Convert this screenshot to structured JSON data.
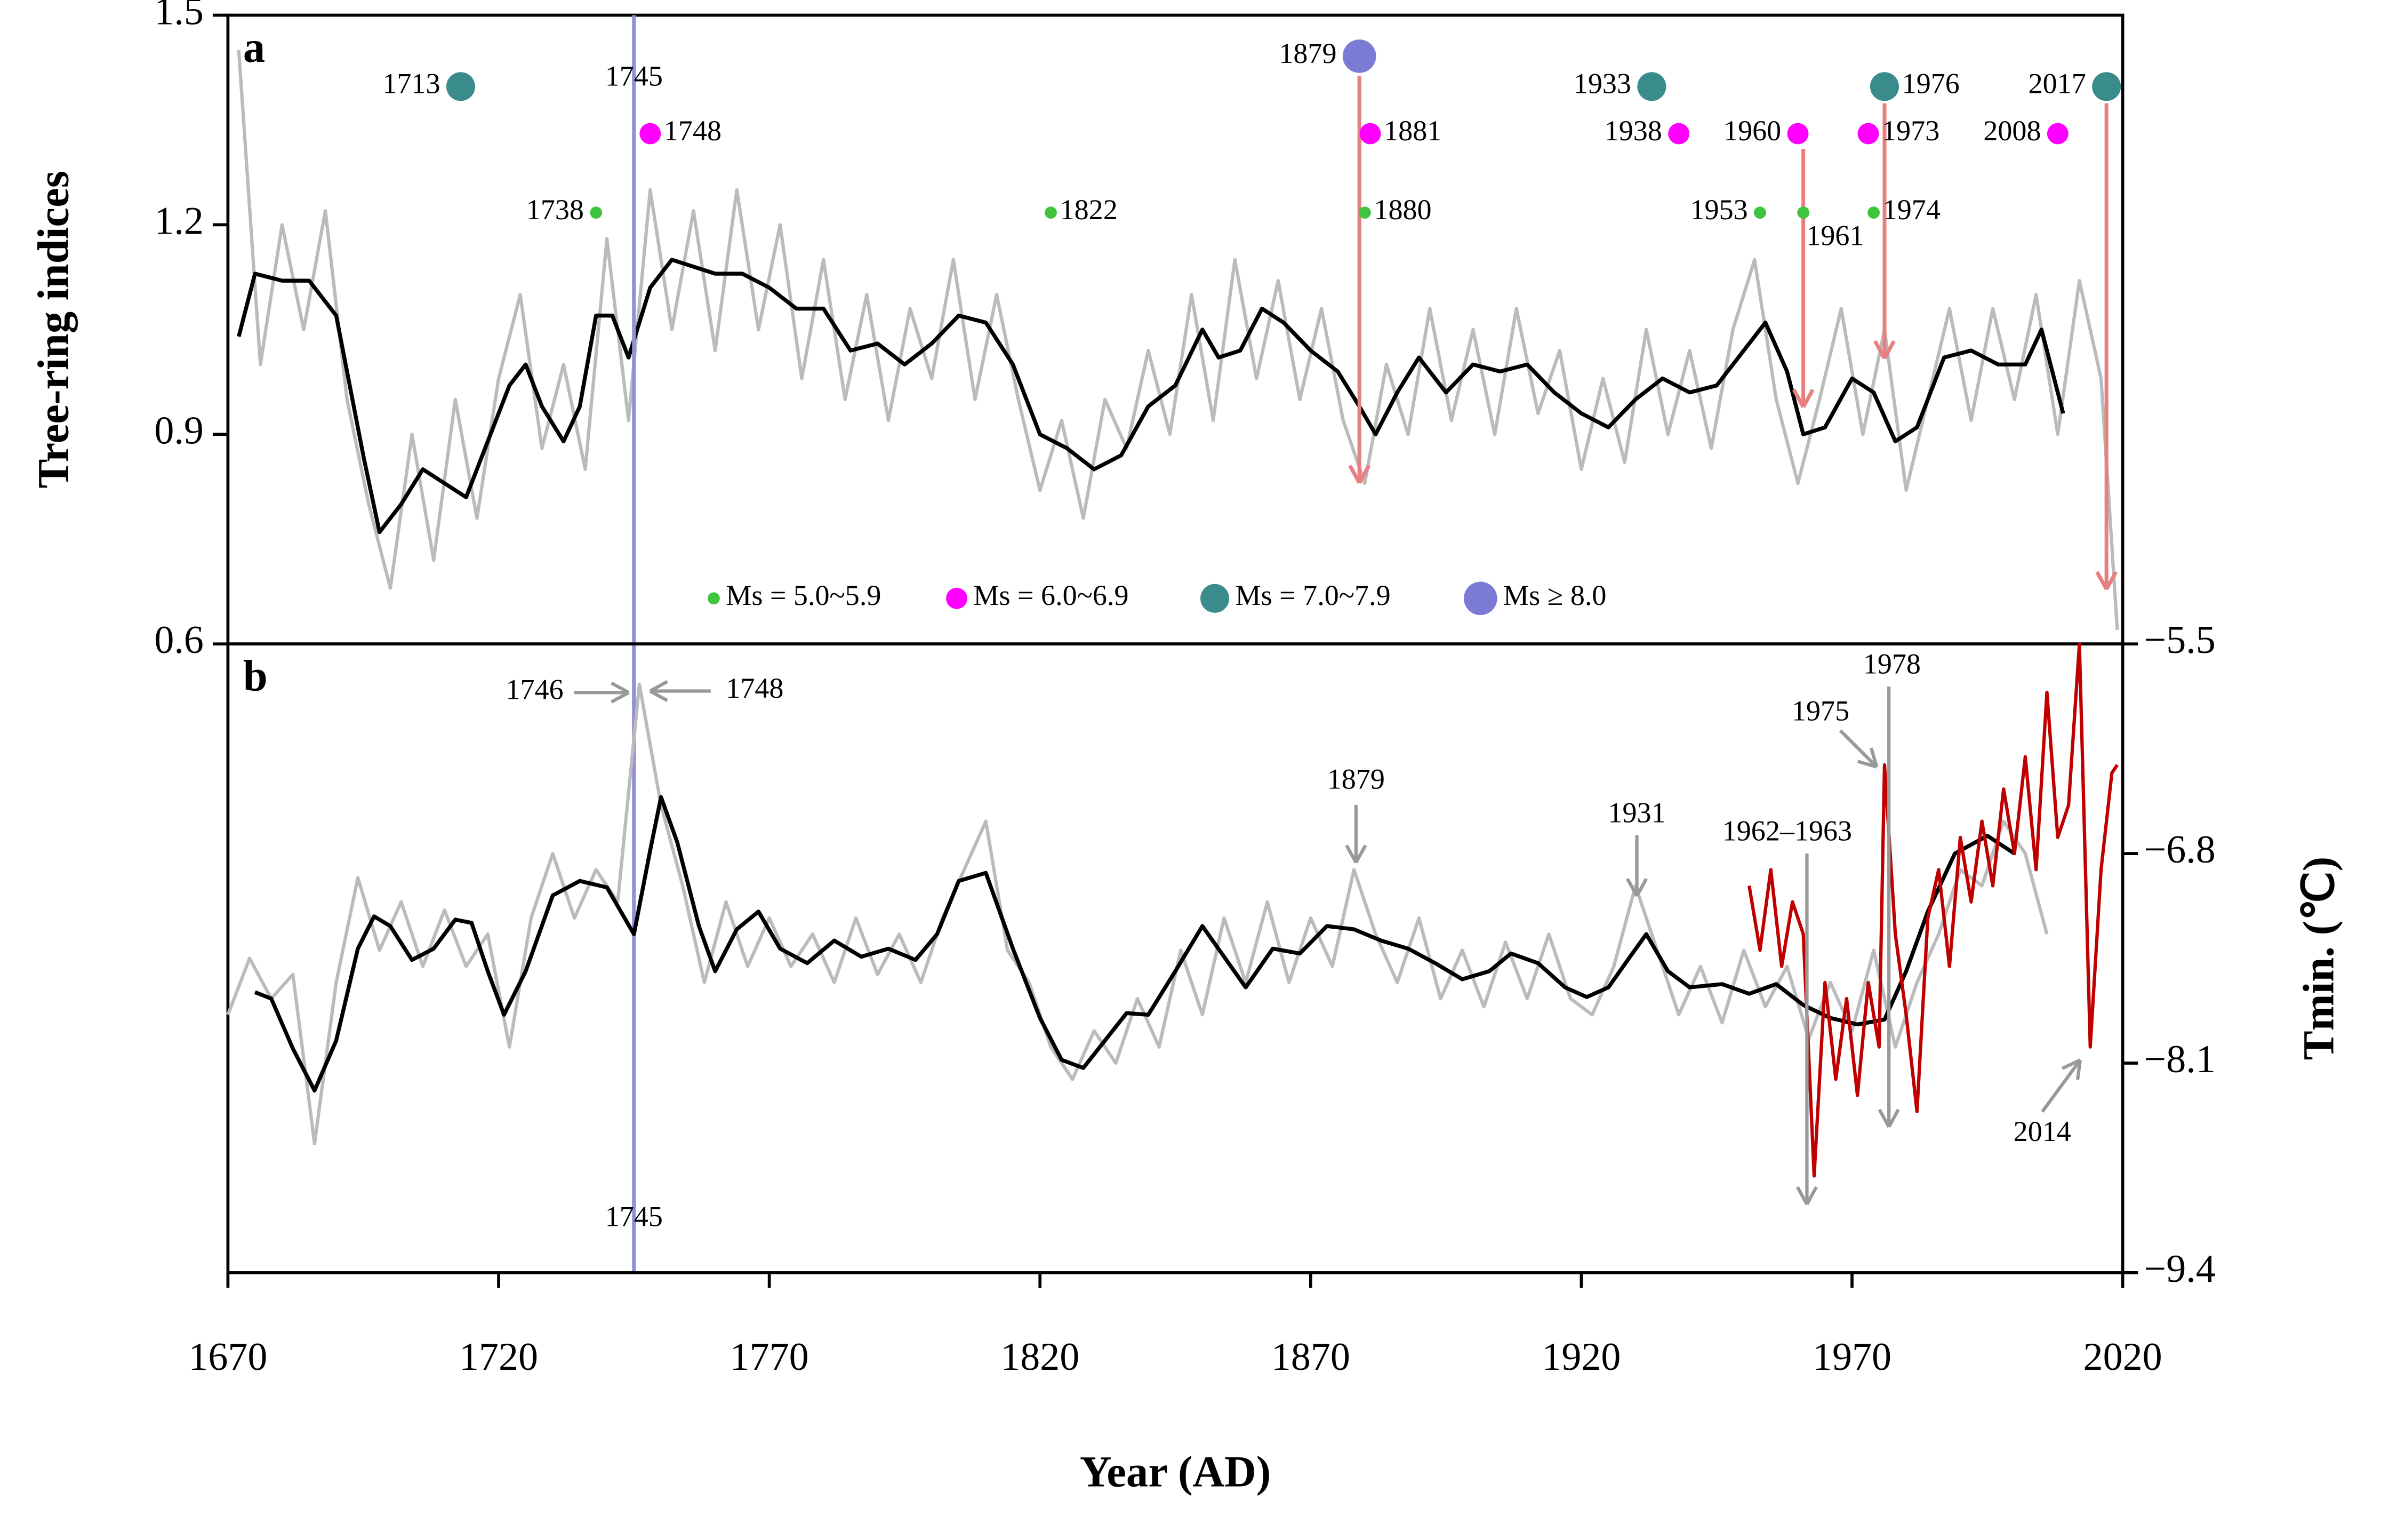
{
  "chart_data": [
    {
      "type": "line",
      "panel_label": "a",
      "ylabel": "Tree-ring indices",
      "xlim": [
        1670,
        2020
      ],
      "ylim": [
        0.6,
        1.5
      ],
      "yticks": [
        0.6,
        0.9,
        1.2,
        1.5
      ],
      "vline": 1745,
      "vline_color": "#8f8fdc",
      "series": [
        {
          "color": "#bbbbbb",
          "x": [
            1672,
            1676,
            1680,
            1684,
            1688,
            1692,
            1696,
            1700,
            1704,
            1708,
            1712,
            1716,
            1720,
            1724,
            1728,
            1732,
            1736,
            1740,
            1744,
            1748,
            1752,
            1756,
            1760,
            1764,
            1768,
            1772,
            1776,
            1780,
            1784,
            1788,
            1792,
            1796,
            1800,
            1804,
            1808,
            1812,
            1816,
            1820,
            1824,
            1828,
            1832,
            1836,
            1840,
            1844,
            1848,
            1852,
            1856,
            1860,
            1864,
            1868,
            1872,
            1876,
            1880,
            1884,
            1888,
            1892,
            1896,
            1900,
            1904,
            1908,
            1912,
            1916,
            1920,
            1924,
            1928,
            1932,
            1936,
            1940,
            1944,
            1948,
            1952,
            1956,
            1960,
            1964,
            1968,
            1972,
            1976,
            1980,
            1984,
            1988,
            1992,
            1996,
            2000,
            2004,
            2008,
            2012,
            2016,
            2019
          ],
          "values": [
            1.45,
            1.0,
            1.2,
            1.05,
            1.22,
            0.95,
            0.8,
            0.68,
            0.9,
            0.72,
            0.95,
            0.78,
            0.98,
            1.1,
            0.88,
            1.0,
            0.85,
            1.18,
            0.92,
            1.25,
            1.05,
            1.22,
            1.02,
            1.25,
            1.05,
            1.2,
            0.98,
            1.15,
            0.95,
            1.1,
            0.92,
            1.08,
            0.98,
            1.15,
            0.95,
            1.1,
            0.95,
            0.82,
            0.92,
            0.78,
            0.95,
            0.88,
            1.02,
            0.9,
            1.1,
            0.92,
            1.15,
            0.98,
            1.12,
            0.95,
            1.08,
            0.92,
            0.83,
            1.0,
            0.9,
            1.08,
            0.92,
            1.05,
            0.9,
            1.08,
            0.93,
            1.02,
            0.85,
            0.98,
            0.86,
            1.05,
            0.9,
            1.02,
            0.88,
            1.05,
            1.15,
            0.95,
            0.83,
            0.95,
            1.08,
            0.9,
            1.05,
            0.82,
            0.95,
            1.08,
            0.92,
            1.08,
            0.95,
            1.1,
            0.9,
            1.12,
            0.98,
            0.62
          ]
        },
        {
          "color": "#000000",
          "x": [
            1672,
            1675,
            1680,
            1685,
            1690,
            1695,
            1698,
            1702,
            1706,
            1710,
            1714,
            1718,
            1722,
            1725,
            1728,
            1732,
            1735,
            1738,
            1741,
            1744,
            1748,
            1752,
            1756,
            1760,
            1765,
            1770,
            1775,
            1780,
            1785,
            1790,
            1795,
            1800,
            1805,
            1810,
            1815,
            1820,
            1825,
            1830,
            1835,
            1840,
            1845,
            1850,
            1853,
            1857,
            1861,
            1865,
            1870,
            1875,
            1879,
            1882,
            1886,
            1890,
            1895,
            1900,
            1905,
            1910,
            1915,
            1920,
            1925,
            1930,
            1935,
            1940,
            1945,
            1950,
            1954,
            1958,
            1961,
            1965,
            1970,
            1974,
            1978,
            1982,
            1987,
            1992,
            1997,
            2002,
            2005,
            2009
          ],
          "values": [
            1.04,
            1.13,
            1.12,
            1.12,
            1.07,
            0.87,
            0.76,
            0.8,
            0.85,
            0.83,
            0.81,
            0.89,
            0.97,
            1.0,
            0.94,
            0.89,
            0.94,
            1.07,
            1.07,
            1.01,
            1.11,
            1.15,
            1.14,
            1.13,
            1.13,
            1.11,
            1.08,
            1.08,
            1.02,
            1.03,
            1.0,
            1.03,
            1.07,
            1.06,
            1.0,
            0.9,
            0.88,
            0.85,
            0.87,
            0.94,
            0.97,
            1.05,
            1.01,
            1.02,
            1.08,
            1.06,
            1.02,
            0.99,
            0.94,
            0.9,
            0.96,
            1.01,
            0.96,
            1.0,
            0.99,
            1.0,
            0.96,
            0.93,
            0.91,
            0.95,
            0.98,
            0.96,
            0.97,
            1.02,
            1.06,
            0.99,
            0.9,
            0.91,
            0.98,
            0.96,
            0.89,
            0.91,
            1.01,
            1.02,
            1.0,
            1.0,
            1.05,
            0.93
          ]
        }
      ],
      "event_classes": [
        {
          "name": "Ms = 5.0~5.9",
          "color": "#3ec43e"
        },
        {
          "name": "Ms = 6.0~6.9",
          "color": "#ff00ff"
        },
        {
          "name": "Ms = 7.0~7.9",
          "color": "#3a8c8c"
        },
        {
          "name": "Ms ≥ 8.0",
          "color": "#7b7bd6"
        }
      ],
      "events": [
        {
          "year": 1713,
          "class": 2
        },
        {
          "year": 1738,
          "class": 0
        },
        {
          "year": 1748,
          "class": 1
        },
        {
          "year": 1822,
          "class": 0
        },
        {
          "year": 1879,
          "class": 3
        },
        {
          "year": 1880,
          "class": 0
        },
        {
          "year": 1881,
          "class": 1
        },
        {
          "year": 1933,
          "class": 2
        },
        {
          "year": 1938,
          "class": 1
        },
        {
          "year": 1953,
          "class": 0
        },
        {
          "year": 1960,
          "class": 1
        },
        {
          "year": 1961,
          "class": 0
        },
        {
          "year": 1973,
          "class": 1
        },
        {
          "year": 1974,
          "class": 0
        },
        {
          "year": 1976,
          "class": 2
        },
        {
          "year": 2008,
          "class": 1
        },
        {
          "year": 2017,
          "class": 2
        }
      ],
      "arrows": [
        1879,
        1961,
        1976,
        2017
      ],
      "arrow_color": "#e88080"
    },
    {
      "type": "line",
      "panel_label": "b",
      "xlabel": "Year (AD)",
      "y2label": "Tmin. (℃)",
      "xlim": [
        1670,
        2020
      ],
      "xticks": [
        1670,
        1720,
        1770,
        1820,
        1870,
        1920,
        1970,
        2020
      ],
      "y2lim": [
        -9.4,
        -5.5
      ],
      "y2ticks": [
        {
          "value": -5.5,
          "label": "−5.5"
        },
        {
          "value": -6.8,
          "label": "−6.8"
        },
        {
          "value": -8.1,
          "label": "−8.1"
        },
        {
          "value": -9.4,
          "label": "−9.4"
        }
      ],
      "series": [
        {
          "color": "#bbbbbb",
          "axis": "y2",
          "x": [
            1670,
            1674,
            1678,
            1682,
            1686,
            1690,
            1694,
            1698,
            1702,
            1706,
            1710,
            1714,
            1718,
            1722,
            1726,
            1730,
            1734,
            1738,
            1742,
            1746,
            1750,
            1754,
            1758,
            1762,
            1766,
            1770,
            1774,
            1778,
            1782,
            1786,
            1790,
            1794,
            1798,
            1802,
            1806,
            1810,
            1814,
            1818,
            1822,
            1826,
            1830,
            1834,
            1838,
            1842,
            1846,
            1850,
            1854,
            1858,
            1862,
            1866,
            1870,
            1874,
            1878,
            1882,
            1886,
            1890,
            1894,
            1898,
            1902,
            1906,
            1910,
            1914,
            1918,
            1922,
            1926,
            1930,
            1934,
            1938,
            1942,
            1946,
            1950,
            1954,
            1958,
            1962,
            1966,
            1970,
            1974,
            1978,
            1982,
            1986,
            1990,
            1994,
            1998,
            2002,
            2006
          ],
          "values": [
            -7.8,
            -7.45,
            -7.7,
            -7.55,
            -8.6,
            -7.6,
            -6.95,
            -7.4,
            -7.1,
            -7.5,
            -7.15,
            -7.5,
            -7.3,
            -8.0,
            -7.2,
            -6.8,
            -7.2,
            -6.9,
            -7.1,
            -5.75,
            -6.5,
            -7.0,
            -7.6,
            -7.1,
            -7.5,
            -7.2,
            -7.5,
            -7.3,
            -7.6,
            -7.2,
            -7.55,
            -7.3,
            -7.6,
            -7.2,
            -6.9,
            -6.6,
            -7.4,
            -7.6,
            -8.0,
            -8.2,
            -7.9,
            -8.1,
            -7.7,
            -8.0,
            -7.4,
            -7.8,
            -7.2,
            -7.6,
            -7.1,
            -7.6,
            -7.2,
            -7.5,
            -6.9,
            -7.3,
            -7.6,
            -7.2,
            -7.7,
            -7.4,
            -7.75,
            -7.35,
            -7.7,
            -7.3,
            -7.7,
            -7.8,
            -7.5,
            -7.0,
            -7.4,
            -7.8,
            -7.5,
            -7.85,
            -7.4,
            -7.75,
            -7.5,
            -7.95,
            -7.6,
            -7.9,
            -7.4,
            -8.0,
            -7.6,
            -7.3,
            -6.9,
            -7.0,
            -6.6,
            -6.8,
            -7.3
          ]
        },
        {
          "color": "#000000",
          "axis": "y2",
          "x": [
            1675,
            1678,
            1682,
            1686,
            1690,
            1694,
            1697,
            1700,
            1704,
            1708,
            1712,
            1715,
            1718,
            1721,
            1725,
            1730,
            1735,
            1740,
            1745,
            1748,
            1750,
            1753,
            1757,
            1760,
            1764,
            1768,
            1772,
            1777,
            1782,
            1787,
            1792,
            1797,
            1801,
            1805,
            1810,
            1815,
            1820,
            1824,
            1828,
            1832,
            1836,
            1840,
            1845,
            1850,
            1854,
            1858,
            1863,
            1868,
            1873,
            1878,
            1883,
            1888,
            1893,
            1898,
            1903,
            1907,
            1912,
            1917,
            1921,
            1925,
            1929,
            1932,
            1936,
            1940,
            1946,
            1951,
            1956,
            1961,
            1966,
            1971,
            1976,
            1980,
            1984,
            1989,
            1995,
            2000
          ],
          "values": [
            -7.66,
            -7.7,
            -8.01,
            -8.27,
            -7.96,
            -7.39,
            -7.19,
            -7.25,
            -7.46,
            -7.39,
            -7.21,
            -7.23,
            -7.53,
            -7.8,
            -7.53,
            -7.06,
            -6.97,
            -7.01,
            -7.3,
            -6.78,
            -6.45,
            -6.73,
            -7.25,
            -7.53,
            -7.27,
            -7.16,
            -7.39,
            -7.48,
            -7.34,
            -7.44,
            -7.39,
            -7.46,
            -7.3,
            -6.97,
            -6.92,
            -7.39,
            -7.82,
            -8.08,
            -8.13,
            -7.96,
            -7.79,
            -7.8,
            -7.53,
            -7.25,
            -7.44,
            -7.63,
            -7.39,
            -7.42,
            -7.25,
            -7.27,
            -7.34,
            -7.39,
            -7.48,
            -7.58,
            -7.53,
            -7.42,
            -7.48,
            -7.63,
            -7.69,
            -7.63,
            -7.44,
            -7.3,
            -7.53,
            -7.63,
            -7.61,
            -7.67,
            -7.61,
            -7.74,
            -7.82,
            -7.86,
            -7.83,
            -7.53,
            -7.16,
            -6.8,
            -6.69,
            -6.8
          ]
        },
        {
          "color": "#c00000",
          "axis": "y2",
          "x": [
            1951,
            1953,
            1955,
            1957,
            1959,
            1961,
            1963,
            1965,
            1967,
            1969,
            1971,
            1973,
            1975,
            1976,
            1978,
            1980,
            1982,
            1984,
            1986,
            1988,
            1990,
            1992,
            1994,
            1996,
            1998,
            2000,
            2002,
            2004,
            2006,
            2008,
            2010,
            2012,
            2014,
            2016,
            2018,
            2019
          ],
          "values": [
            -7.0,
            -7.4,
            -6.9,
            -7.5,
            -7.1,
            -7.3,
            -8.8,
            -7.6,
            -8.2,
            -7.7,
            -8.3,
            -7.6,
            -8.0,
            -6.25,
            -7.3,
            -7.8,
            -8.4,
            -7.2,
            -6.9,
            -7.5,
            -6.7,
            -7.1,
            -6.6,
            -7.0,
            -6.4,
            -6.8,
            -6.2,
            -6.9,
            -5.8,
            -6.7,
            -6.5,
            -5.5,
            -8.0,
            -6.9,
            -6.3,
            -6.25
          ]
        }
      ],
      "annotations": [
        "1746",
        "1748",
        "1879",
        "1931",
        "1962–1963",
        "1975",
        "1978",
        "2014"
      ],
      "annotation_color": "#999999"
    }
  ]
}
